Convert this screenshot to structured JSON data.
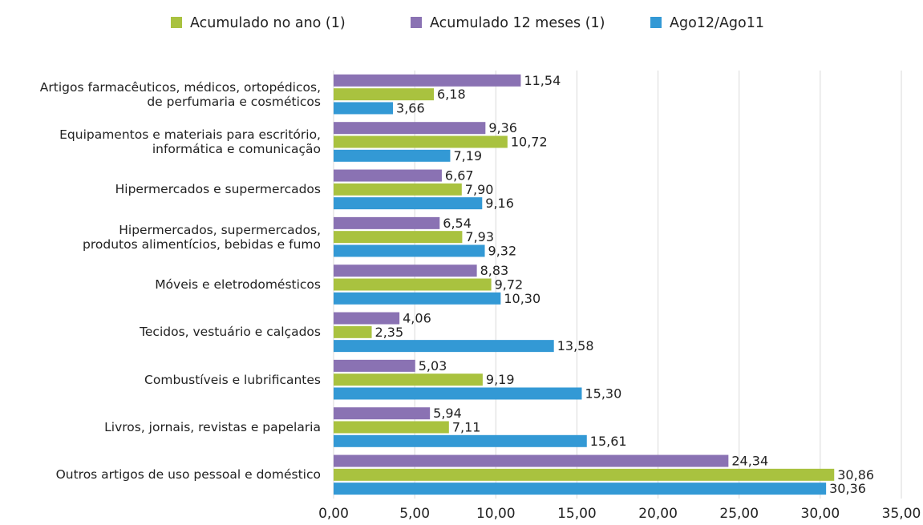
{
  "chart_data": {
    "type": "bar",
    "orientation": "horizontal",
    "categories": [
      "Artigos farmacêuticos, médicos, ortopédicos,\nde perfumaria e cosméticos",
      "Equipamentos e materiais para escritório,\ninformática e comunicação",
      "Hipermercados e supermercados",
      "Hipermercados, supermercados,\nprodutos alimentícios, bebidas e fumo",
      "Móveis e eletrodomésticos",
      "Tecidos, vestuário e calçados",
      "Combustíveis e lubrificantes",
      "Livros, jornais, revistas e papelaria",
      "Outros artigos de uso pessoal e doméstico"
    ],
    "series": [
      {
        "name": "Acumulado no ano (1)",
        "color": "#a9c23f",
        "values": [
          6.18,
          10.72,
          7.9,
          7.93,
          9.72,
          2.35,
          9.19,
          7.11,
          30.86
        ],
        "value_labels": [
          "6,18",
          "10,72",
          "7,90",
          "7,93",
          "9,72",
          "2,35",
          "9,19",
          "7,11",
          "30,86"
        ]
      },
      {
        "name": "Acumulado 12 meses (1)",
        "color": "#8a72b3",
        "values": [
          11.54,
          9.36,
          6.67,
          6.54,
          8.83,
          4.06,
          5.03,
          5.94,
          24.34
        ],
        "value_labels": [
          "11,54",
          "9,36",
          "6,67",
          "6,54",
          "8,83",
          "4,06",
          "5,03",
          "5,94",
          "24,34"
        ]
      },
      {
        "name": "Ago12/Ago11",
        "color": "#3399d5",
        "values": [
          3.66,
          7.19,
          9.16,
          9.32,
          10.3,
          13.58,
          15.3,
          15.61,
          30.36
        ],
        "value_labels": [
          "3,66",
          "7,19",
          "9,16",
          "9,32",
          "10,30",
          "13,58",
          "15,30",
          "15,61",
          "30,36"
        ]
      }
    ],
    "xlim": [
      0,
      35
    ],
    "xticks": [
      {
        "value": 0,
        "label": "0,00"
      },
      {
        "value": 5,
        "label": "5,00"
      },
      {
        "value": 10,
        "label": "10,00"
      },
      {
        "value": 15,
        "label": "15,00"
      },
      {
        "value": 20,
        "label": "20,00"
      },
      {
        "value": 25,
        "label": "25,00"
      },
      {
        "value": 30,
        "label": "30,00"
      },
      {
        "value": 35,
        "label": "35,00"
      }
    ],
    "grid": true,
    "legend": "top"
  }
}
